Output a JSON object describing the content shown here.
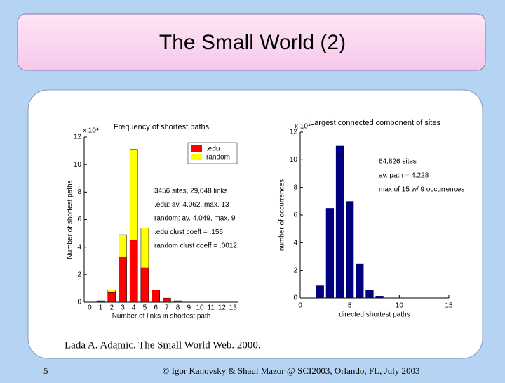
{
  "slide_title": "The Small World (2)",
  "caption": "Lada A. Adamic. The Small World Web. 2000.",
  "footer": {
    "page": "5",
    "text": "© Igor Kanovsky & Shaul Mazor @ SCI2003, Orlando, FL, July 2003"
  },
  "chart_data": [
    {
      "type": "bar",
      "title": "Frequency of shortest paths",
      "y_multiplier": "x 10⁴",
      "xlabel": "Number of links in shortest path",
      "ylabel": "Number of shortest paths",
      "categories": [
        "0",
        "1",
        "2",
        "3",
        "4",
        "5",
        "6",
        "7",
        "8",
        "9",
        "10",
        "11",
        "12",
        "13"
      ],
      "series": [
        {
          "name": "random",
          "color": "#ffff00",
          "values": [
            0,
            0.1,
            0.9,
            4.9,
            11.1,
            5.4,
            0.9,
            0.2,
            0,
            0,
            0,
            0,
            0,
            0
          ]
        },
        {
          "name": ".edu",
          "color": "#ff0000",
          "values": [
            0,
            0.05,
            0.7,
            3.3,
            4.5,
            2.5,
            0.9,
            0.3,
            0.1,
            0,
            0,
            0,
            0,
            0
          ]
        }
      ],
      "ylim": [
        0,
        12
      ],
      "yticks": [
        0,
        2,
        4,
        6,
        8,
        10,
        12
      ],
      "legend": "top-right",
      "annotations": [
        "3456 sites, 29,048 links",
        ".edu: av. 4.062, max. 13",
        "random: av. 4.049, max. 9",
        ".edu clust coeff = .156",
        "random clust coeff = .0012"
      ]
    },
    {
      "type": "bar",
      "title": "Largest connected component of sites",
      "y_multiplier": "x 10⁴",
      "xlabel": "directed shortest paths",
      "ylabel": "number of occurrences",
      "x": [
        2,
        3,
        4,
        5,
        6,
        7,
        8
      ],
      "values": [
        0.9,
        6.5,
        11.0,
        7.0,
        2.5,
        0.6,
        0.15
      ],
      "color": "#000080",
      "xlim": [
        0,
        15
      ],
      "xticks": [
        0,
        5,
        10,
        15
      ],
      "ylim": [
        0,
        12
      ],
      "yticks": [
        0,
        2,
        4,
        6,
        8,
        10,
        12
      ],
      "annotations": [
        "64,826 sites",
        "av. path = 4.228",
        "max of 15 w/ 9 occurrences"
      ]
    }
  ]
}
